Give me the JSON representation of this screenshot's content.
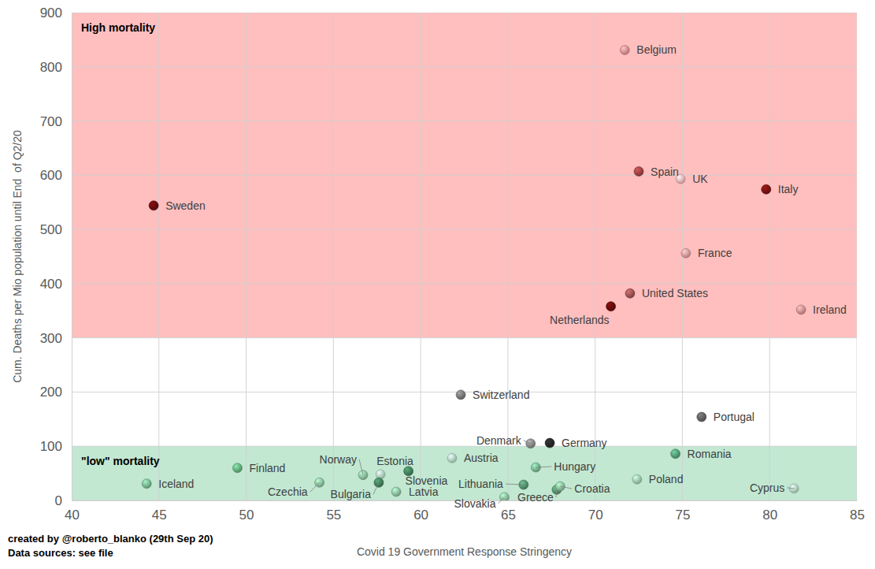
{
  "chart_data": {
    "type": "scatter",
    "x_label": "Covid 19 Government Response Stringency",
    "y_label": "Cum. Deaths per Mio population until End  of Q2/20",
    "point_labels": [
      "Belgium",
      "Spain",
      "UK",
      "Italy",
      "Sweden",
      "France",
      "United States",
      "Netherlands",
      "Ireland",
      "Switzerland",
      "Portugal",
      "Denmark",
      "Germany",
      "Romania",
      "Finland",
      "Iceland",
      "Norway",
      "Estonia",
      "Austria",
      "Hungary",
      "Slovenia",
      "Czechia",
      "Bulgaria",
      "Latvia",
      "Lithuania",
      "Slovakia",
      "Greece",
      "Croatia",
      "Poland",
      "Cyprus"
    ],
    "x": [
      71.7,
      72.5,
      74.9,
      79.8,
      44.7,
      75.2,
      72.0,
      70.9,
      81.8,
      62.3,
      76.1,
      66.3,
      67.4,
      74.6,
      49.5,
      44.3,
      56.7,
      57.7,
      61.8,
      66.6,
      59.3,
      54.2,
      57.6,
      58.6,
      65.9,
      64.8,
      67.8,
      68.0,
      72.4,
      81.4
    ],
    "values": [
      831,
      607,
      593,
      574,
      544,
      456,
      382,
      358,
      352,
      195,
      154,
      105,
      106,
      86,
      60,
      31,
      47,
      48,
      78,
      61,
      54,
      33,
      33,
      16,
      29,
      6,
      20,
      26,
      39,
      22
    ],
    "colors": [
      "#c98080",
      "#8b3a3a",
      "#d9a0a0",
      "#6b1010",
      "#5a0a0a",
      "#c98888",
      "#8b4a4a",
      "#5a0a0a",
      "#c48080",
      "#6a6a6a",
      "#555555",
      "#777777",
      "#222222",
      "#4a8a6a",
      "#5a9a70",
      "#6aa080",
      "#7aa88a",
      "#9ac0a8",
      "#9ac0a8",
      "#6aa080",
      "#3a7050",
      "#7aa88a",
      "#3a7050",
      "#7aa88a",
      "#4a8060",
      "#7aa88a",
      "#4a8060",
      "#7aa88a",
      "#8ab898",
      "#9ac0a8"
    ],
    "marker": "circle",
    "xlim": [
      40,
      85
    ],
    "xticks": [
      40,
      45,
      50,
      55,
      60,
      65,
      70,
      75,
      80,
      85
    ],
    "ylim": [
      0,
      900
    ],
    "yticks": [
      0,
      100,
      200,
      300,
      400,
      500,
      600,
      700,
      800,
      900
    ],
    "grid": true,
    "bands": [
      {
        "label": "High mortality",
        "from": 300,
        "to": 900,
        "color": "#ffbfbf"
      },
      {
        "label": "\"low\" mortality",
        "from": 0,
        "to": 100,
        "color": "#c2e8d2"
      }
    ],
    "footnotes": [
      "created by @roberto_blanko (29th Sep 20)",
      "Data sources: see file"
    ]
  }
}
